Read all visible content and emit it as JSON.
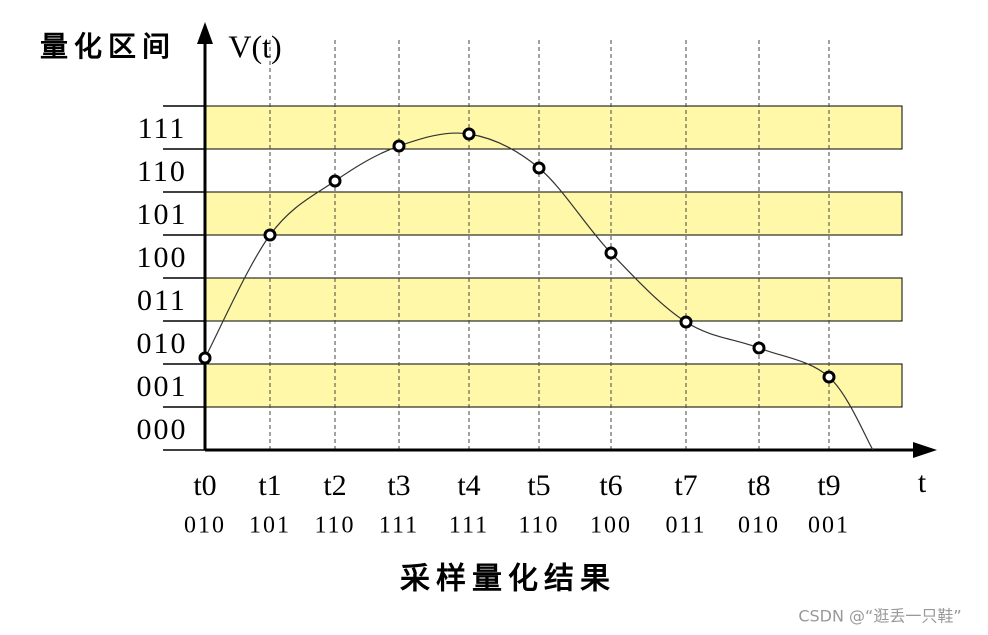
{
  "y_axis": {
    "title": "量化区间",
    "variable": "V(t)"
  },
  "x_axis": {
    "variable": "t"
  },
  "levels": [
    "000",
    "001",
    "010",
    "011",
    "100",
    "101",
    "110",
    "111"
  ],
  "samples": [
    {
      "label": "t0",
      "code": "010"
    },
    {
      "label": "t1",
      "code": "101"
    },
    {
      "label": "t2",
      "code": "110"
    },
    {
      "label": "t3",
      "code": "111"
    },
    {
      "label": "t4",
      "code": "111"
    },
    {
      "label": "t5",
      "code": "110"
    },
    {
      "label": "t6",
      "code": "100"
    },
    {
      "label": "t7",
      "code": "011"
    },
    {
      "label": "t8",
      "code": "010"
    },
    {
      "label": "t9",
      "code": "001"
    }
  ],
  "caption": "采样量化结果",
  "watermark": "CSDN @“逛丢一只鞋”"
}
